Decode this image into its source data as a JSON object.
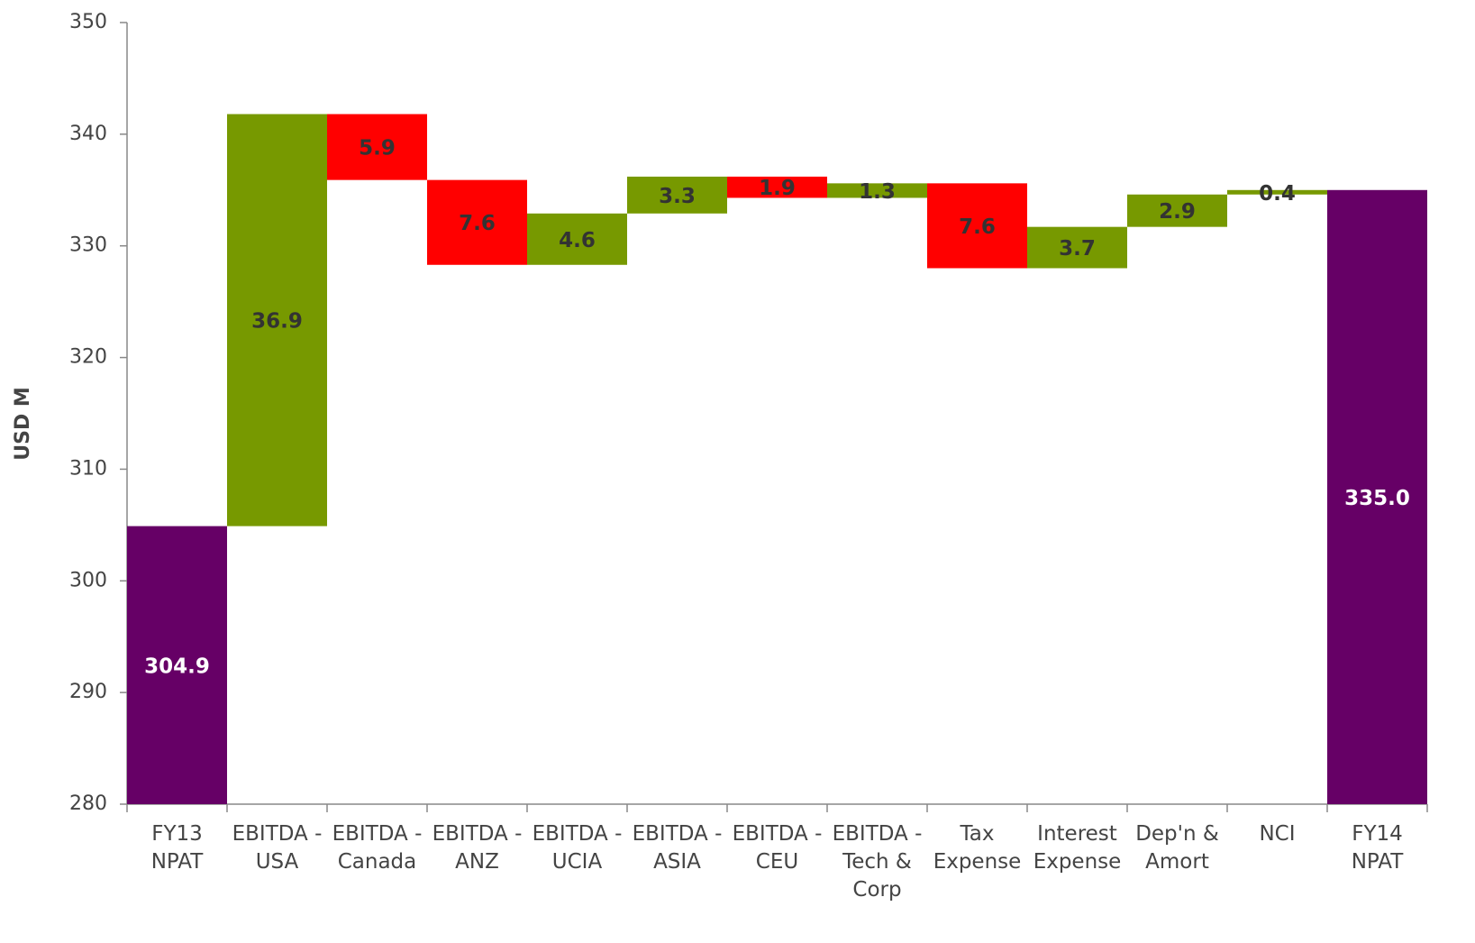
{
  "chart_data": {
    "type": "waterfall",
    "y_label": "USD M",
    "categories": [
      "FY13 NPAT",
      "EBITDA - USA",
      "EBITDA - Canada",
      "EBITDA - ANZ",
      "EBITDA - UCIA",
      "EBITDA - ASIA",
      "EBITDA - CEU",
      "EBITDA - Tech & Corp",
      "Tax Expense",
      "Interest Expense",
      "Dep'n & Amort",
      "NCI",
      "FY14 NPAT"
    ],
    "values": [
      304.9,
      36.9,
      -5.9,
      -7.6,
      4.6,
      3.3,
      -1.9,
      1.3,
      -7.6,
      3.7,
      2.9,
      0.4,
      335.0
    ],
    "value_labels": [
      "304.9",
      "36.9",
      "5.9",
      "7.6",
      "4.6",
      "3.3",
      "1.9",
      "1.3",
      "7.6",
      "3.7",
      "2.9",
      "0.4",
      "335.0"
    ],
    "measures": [
      "total",
      "relative",
      "relative",
      "relative",
      "relative",
      "relative",
      "relative",
      "relative",
      "relative",
      "relative",
      "relative",
      "relative",
      "total"
    ],
    "colors": {
      "total": "#660066",
      "increase": "#779900",
      "decrease": "#ff0000"
    },
    "ylim": [
      280,
      350
    ],
    "yticks": [
      280,
      290,
      300,
      310,
      320,
      330,
      340,
      350
    ]
  }
}
